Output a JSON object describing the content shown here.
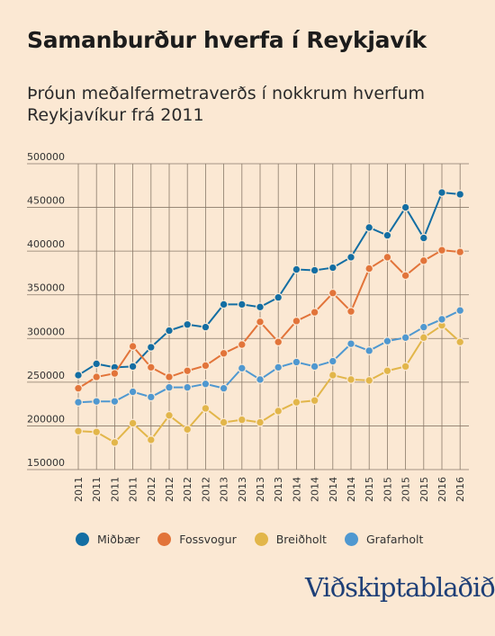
{
  "title": "Samanburður hverfa í Reykjavík",
  "subtitle": "Þróun meðalfermetraverðs í nokkrum hverfum Reykjavíkur frá 2011",
  "logo": "Viðskiptablaðið",
  "chart_data": {
    "type": "line",
    "categories": [
      "2011",
      "2011",
      "2011",
      "2011",
      "2012",
      "2012",
      "2012",
      "2012",
      "2013",
      "2013",
      "2013",
      "2013",
      "2014",
      "2014",
      "2014",
      "2014",
      "2015",
      "2015",
      "2015",
      "2015",
      "2016",
      "2016"
    ],
    "ylim": [
      150000,
      500000
    ],
    "yticks": [
      "150000",
      "200000",
      "250000",
      "300000",
      "350000",
      "400000",
      "450000",
      "500000"
    ],
    "grid": true,
    "legend_position": "bottom",
    "series": [
      {
        "name": "Miðbær",
        "color": "#136ea3",
        "values": [
          258000,
          271000,
          267000,
          268000,
          290000,
          309000,
          316000,
          313000,
          339000,
          339000,
          336000,
          347000,
          379000,
          378000,
          381000,
          393000,
          427000,
          418000,
          450000,
          415000,
          467000,
          465000
        ]
      },
      {
        "name": "Fossvogur",
        "color": "#e2743a",
        "values": [
          243000,
          256000,
          260000,
          291000,
          267000,
          256000,
          263000,
          269000,
          283000,
          293000,
          319000,
          296000,
          320000,
          330000,
          352000,
          331000,
          380000,
          393000,
          372000,
          389000,
          401000,
          399000
        ]
      },
      {
        "name": "Breiðholt",
        "color": "#e2b64a",
        "values": [
          194000,
          193000,
          181000,
          203000,
          184000,
          212000,
          196000,
          220000,
          204000,
          207000,
          204000,
          217000,
          227000,
          229000,
          258000,
          253000,
          252000,
          263000,
          268000,
          301000,
          315000,
          296000
        ]
      },
      {
        "name": "Grafarholt",
        "color": "#4f98d0",
        "values": [
          227000,
          228000,
          228000,
          239000,
          233000,
          244000,
          244000,
          248000,
          243000,
          266000,
          253000,
          267000,
          273000,
          268000,
          274000,
          294000,
          286000,
          297000,
          301000,
          313000,
          322000,
          332000
        ]
      }
    ]
  }
}
